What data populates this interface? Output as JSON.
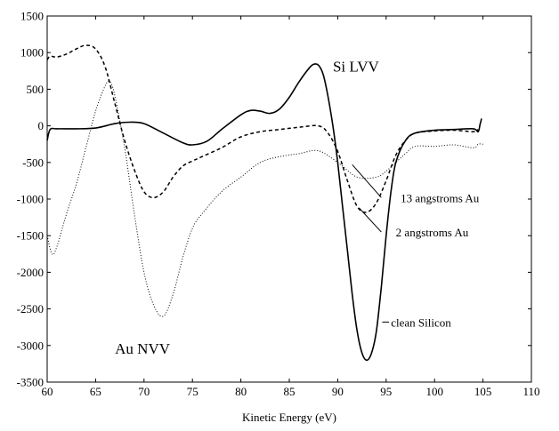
{
  "chart_data": {
    "type": "line",
    "xlabel": "Kinetic Energy (eV)",
    "ylabel": "",
    "xlim": [
      60,
      110
    ],
    "ylim": [
      -3500,
      1500
    ],
    "xticks": [
      60,
      65,
      70,
      75,
      80,
      85,
      90,
      95,
      100,
      105,
      110
    ],
    "yticks": [
      1500,
      1000,
      500,
      0,
      -500,
      -1000,
      -1500,
      -2000,
      -2500,
      -3000,
      -3500
    ],
    "grid": false,
    "series": [
      {
        "name": "clean Silicon",
        "style": "solid",
        "x": [
          60,
          60.3,
          61,
          63,
          65,
          67,
          68.5,
          70,
          72,
          74,
          75,
          76.5,
          78,
          80,
          81,
          82,
          83,
          84,
          85,
          86,
          87,
          87.5,
          88,
          88.5,
          89,
          89.5,
          90,
          90.5,
          91,
          91.5,
          92,
          92.5,
          93,
          93.5,
          94,
          94.5,
          95,
          95.5,
          96,
          97,
          98,
          100,
          102,
          104,
          104.5,
          104.7,
          104.85
        ],
        "y": [
          -200,
          -50,
          -40,
          -40,
          -30,
          30,
          50,
          30,
          -100,
          -230,
          -260,
          -210,
          -50,
          150,
          210,
          200,
          170,
          230,
          390,
          600,
          780,
          840,
          830,
          700,
          400,
          0,
          -500,
          -1100,
          -1700,
          -2300,
          -2800,
          -3100,
          -3200,
          -3100,
          -2800,
          -2200,
          -1500,
          -900,
          -500,
          -200,
          -100,
          -60,
          -50,
          -40,
          -80,
          20,
          100
        ]
      },
      {
        "name": "2 angstroms Au",
        "style": "dashed",
        "x": [
          60,
          60.3,
          61,
          62,
          63,
          64,
          65,
          66,
          67,
          68,
          69,
          70,
          71,
          72,
          73,
          74,
          75,
          76,
          78,
          80,
          82,
          84,
          86,
          88,
          89,
          90,
          91,
          92,
          93,
          94,
          95,
          96,
          97,
          98,
          100,
          102,
          104,
          104.5
        ],
        "y": [
          900,
          950,
          940,
          980,
          1050,
          1100,
          1050,
          800,
          300,
          -200,
          -600,
          -900,
          -980,
          -900,
          -700,
          -550,
          -480,
          -420,
          -300,
          -150,
          -80,
          -50,
          -20,
          0,
          -100,
          -350,
          -750,
          -1100,
          -1180,
          -1050,
          -750,
          -400,
          -200,
          -100,
          -70,
          -60,
          -80,
          -50
        ]
      },
      {
        "name": "13 angstroms Au",
        "style": "dotted",
        "x": [
          60,
          60.5,
          61,
          62,
          63,
          64,
          65,
          66,
          66.5,
          67,
          68,
          69,
          70,
          71,
          72,
          73,
          74,
          75,
          76,
          78,
          80,
          82,
          84,
          86,
          88,
          90,
          92,
          94,
          95,
          96,
          97,
          98,
          100,
          102,
          104,
          104.5,
          105
        ],
        "y": [
          -1500,
          -1750,
          -1650,
          -1200,
          -800,
          -300,
          200,
          550,
          600,
          400,
          -300,
          -1200,
          -2000,
          -2450,
          -2600,
          -2300,
          -1800,
          -1400,
          -1200,
          -900,
          -700,
          -500,
          -420,
          -380,
          -340,
          -500,
          -700,
          -700,
          -620,
          -500,
          -380,
          -280,
          -280,
          -260,
          -300,
          -250,
          -250
        ]
      }
    ],
    "annotations": [
      {
        "text": "Si LVV",
        "x": 89.5,
        "y": 800
      },
      {
        "text": "Au NVV",
        "x": 67,
        "y": -3050
      },
      {
        "text": "13 angstroms Au",
        "x": 96.5,
        "y": -980
      },
      {
        "text": "2 angstroms Au",
        "x": 96,
        "y": -1450
      },
      {
        "text": "clean Silicon",
        "x": 95.5,
        "y": -2680
      }
    ],
    "leaders": [
      {
        "label": "13 angstroms Au",
        "from": [
          94.5,
          -980
        ],
        "to": [
          91.5,
          -530
        ]
      },
      {
        "label": "2 angstroms Au",
        "from": [
          94.5,
          -1450
        ],
        "to": [
          92.2,
          -1120
        ]
      },
      {
        "label": "clean Silicon",
        "from": [
          95.3,
          -2680
        ],
        "to": [
          94.6,
          -2680
        ]
      }
    ]
  }
}
